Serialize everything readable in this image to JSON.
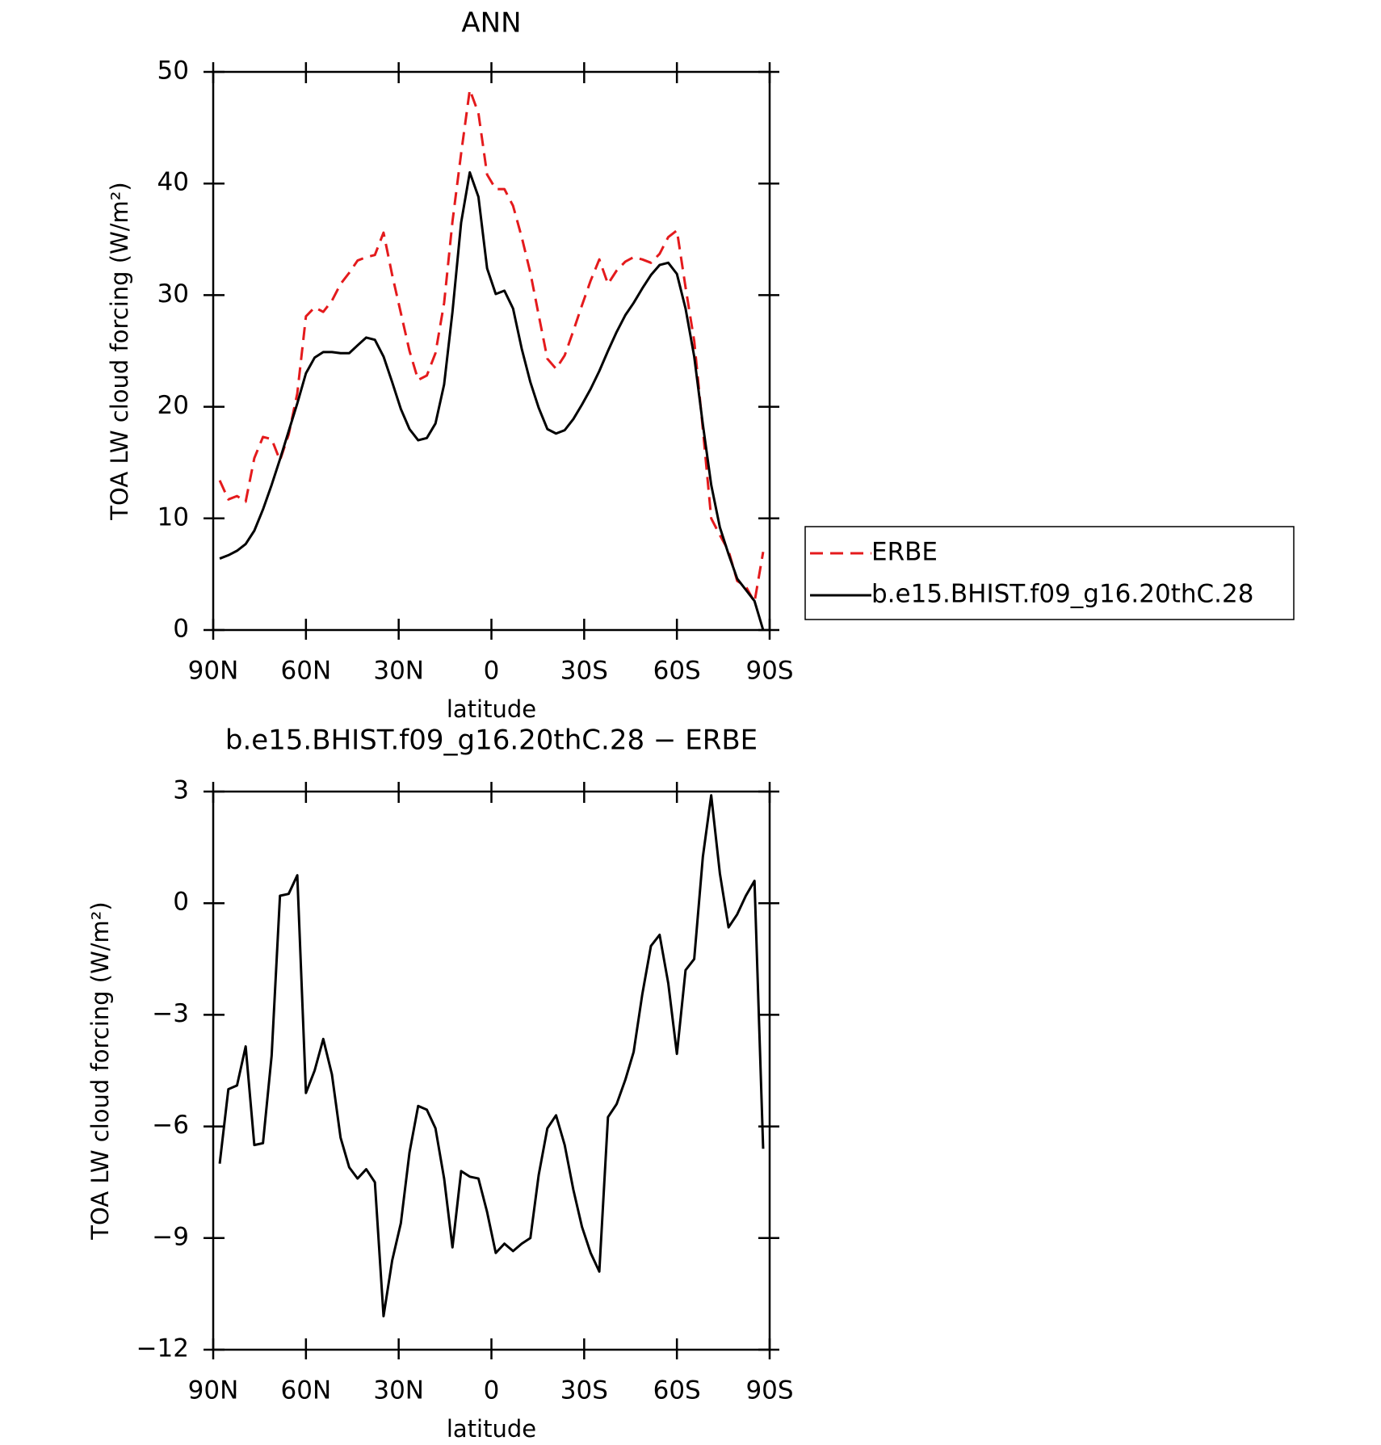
{
  "chart_data": [
    {
      "type": "line",
      "title": "ANN",
      "x_label": "latitude",
      "y_label": "TOA LW cloud forcing (W/m²)",
      "x": [
        87.9,
        85.1,
        82.3,
        79.5,
        76.7,
        73.9,
        71.1,
        68.4,
        65.6,
        62.8,
        60.0,
        57.2,
        54.4,
        51.6,
        48.8,
        46.0,
        43.3,
        40.5,
        37.7,
        34.9,
        32.1,
        29.3,
        26.5,
        23.7,
        20.9,
        18.1,
        15.3,
        12.6,
        9.8,
        7.0,
        4.2,
        1.4,
        -1.4,
        -4.2,
        -7.0,
        -9.8,
        -12.6,
        -15.3,
        -18.1,
        -20.9,
        -23.7,
        -26.5,
        -29.3,
        -32.1,
        -34.9,
        -37.7,
        -40.5,
        -43.3,
        -46.0,
        -48.8,
        -51.6,
        -54.4,
        -57.2,
        -60.0,
        -62.8,
        -65.6,
        -68.4,
        -71.1,
        -73.9,
        -76.7,
        -79.5,
        -82.3,
        -85.1,
        -87.9
      ],
      "series": [
        {
          "name": "ERBE",
          "color": "#e41a1c",
          "dashed": true,
          "values": [
            13.4,
            11.7,
            12.0,
            11.5,
            15.4,
            17.3,
            17.1,
            15.2,
            17.5,
            21.2,
            28.1,
            28.9,
            28.5,
            29.5,
            31.0,
            32.0,
            33.1,
            33.4,
            33.6,
            35.6,
            31.8,
            28.4,
            25.0,
            22.4,
            22.8,
            24.8,
            29.3,
            36.6,
            42.7,
            48.4,
            46.3,
            40.8,
            39.5,
            39.5,
            38.0,
            35.2,
            32.0,
            28.2,
            24.3,
            23.4,
            24.6,
            26.8,
            29.1,
            31.3,
            33.2,
            31.0,
            32.2,
            33.0,
            33.4,
            33.2,
            32.9,
            33.7,
            35.2,
            35.8,
            30.7,
            25.9,
            18.0,
            10.0,
            8.5,
            7.1,
            4.4,
            3.9,
            2.5,
            7.0
          ]
        },
        {
          "name": "b.e15.BHIST.f09_g16.20thC.28",
          "color": "#000000",
          "dashed": false,
          "values": [
            6.4,
            6.7,
            7.1,
            7.7,
            8.9,
            10.8,
            13.0,
            15.3,
            17.8,
            20.3,
            23.0,
            24.4,
            24.9,
            24.9,
            24.8,
            24.8,
            25.5,
            26.2,
            26.0,
            24.5,
            22.2,
            19.8,
            18.0,
            17.0,
            17.2,
            18.5,
            22.0,
            28.5,
            36.5,
            41.0,
            38.8,
            32.4,
            30.1,
            30.4,
            28.8,
            25.2,
            22.2,
            19.9,
            18.0,
            17.6,
            17.9,
            18.9,
            20.2,
            21.6,
            23.2,
            25.0,
            26.7,
            28.2,
            29.3,
            30.6,
            31.8,
            32.7,
            32.9,
            31.9,
            28.8,
            24.5,
            18.4,
            13.0,
            9.2,
            6.8,
            4.6,
            3.6,
            2.6,
            0.0
          ]
        }
      ],
      "xlim": [
        90,
        -90
      ],
      "xticks": [
        {
          "value": 90,
          "label": "90N"
        },
        {
          "value": 60,
          "label": "60N"
        },
        {
          "value": 30,
          "label": "30N"
        },
        0,
        {
          "value": -30,
          "label": "30S"
        },
        {
          "value": -60,
          "label": "60S"
        },
        {
          "value": -90,
          "label": "90S"
        }
      ],
      "ylim": [
        0,
        50
      ],
      "yticks": [
        0,
        10,
        20,
        30,
        40,
        50
      ],
      "legend": "right"
    },
    {
      "type": "line",
      "title": "b.e15.BHIST.f09_g16.20thC.28 − ERBE",
      "x_label": "latitude",
      "y_label": "TOA LW cloud forcing (W/m²)",
      "x": [
        87.9,
        85.1,
        82.3,
        79.5,
        76.7,
        73.9,
        71.1,
        68.4,
        65.6,
        62.8,
        60.0,
        57.2,
        54.4,
        51.6,
        48.8,
        46.0,
        43.3,
        40.5,
        37.7,
        34.9,
        32.1,
        29.3,
        26.5,
        23.7,
        20.9,
        18.1,
        15.3,
        12.6,
        9.8,
        7.0,
        4.2,
        1.4,
        -1.4,
        -4.2,
        -7.0,
        -9.8,
        -12.6,
        -15.3,
        -18.1,
        -20.9,
        -23.7,
        -26.5,
        -29.3,
        -32.1,
        -34.9,
        -37.7,
        -40.5,
        -43.3,
        -46.0,
        -48.8,
        -51.6,
        -54.4,
        -57.2,
        -60.0,
        -62.8,
        -65.6,
        -68.4,
        -71.1,
        -73.9,
        -76.7,
        -79.5,
        -82.3,
        -85.1,
        -87.9
      ],
      "values": [
        -7.0,
        -5.0,
        -4.9,
        -3.85,
        -6.5,
        -6.45,
        -4.1,
        0.2,
        0.25,
        0.75,
        -5.1,
        -4.5,
        -3.65,
        -4.6,
        -6.3,
        -7.1,
        -7.4,
        -7.15,
        -7.5,
        -11.1,
        -9.6,
        -8.6,
        -6.7,
        -5.45,
        -5.55,
        -6.05,
        -7.4,
        -9.25,
        -7.2,
        -7.35,
        -7.4,
        -8.3,
        -9.4,
        -9.15,
        -9.35,
        -9.15,
        -9.0,
        -7.3,
        -6.05,
        -5.7,
        -6.5,
        -7.7,
        -8.7,
        -9.4,
        -9.9,
        -5.75,
        -5.4,
        -4.75,
        -4.0,
        -2.45,
        -1.15,
        -0.85,
        -2.15,
        -4.05,
        -1.8,
        -1.5,
        1.25,
        2.9,
        0.8,
        -0.65,
        -0.3,
        0.2,
        0.6,
        -6.6
      ],
      "color": "#000000",
      "xlim": [
        90,
        -90
      ],
      "xticks": [
        {
          "value": 90,
          "label": "90N"
        },
        {
          "value": 60,
          "label": "60N"
        },
        {
          "value": 30,
          "label": "30N"
        },
        0,
        {
          "value": -30,
          "label": "30S"
        },
        {
          "value": -60,
          "label": "60S"
        },
        {
          "value": -90,
          "label": "90S"
        }
      ],
      "ylim": [
        -12,
        3
      ],
      "yticks": [
        {
          "value": -12,
          "label": "−12"
        },
        {
          "value": -9,
          "label": "−9"
        },
        {
          "value": -6,
          "label": "−6"
        },
        {
          "value": -3,
          "label": "−3"
        },
        0,
        3
      ]
    }
  ]
}
